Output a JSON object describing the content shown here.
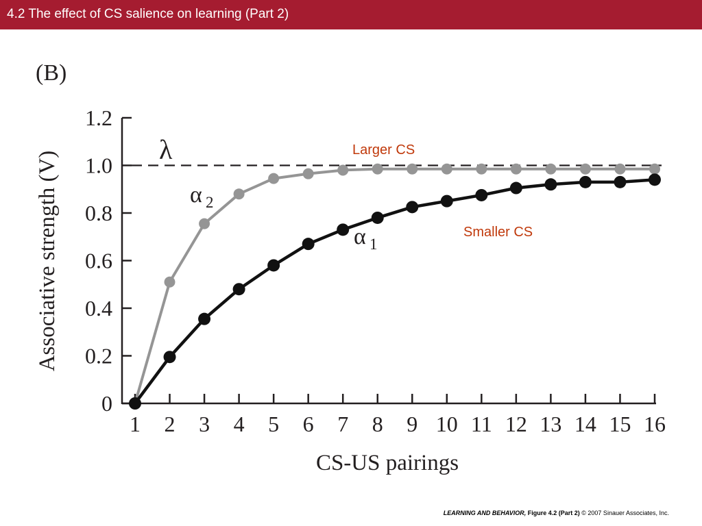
{
  "header": {
    "title": "4.2  The effect of CS salience on learning (Part 2)"
  },
  "panel_label": "(B)",
  "footer": {
    "book": "LEARNING AND BEHAVIOR,",
    "figure": " Figure 4.2 (Part 2)",
    "copyright": "  © 2007 Sinauer Associates, Inc."
  },
  "colors": {
    "title_bar": "#a51c30",
    "larger_cs": "#959595",
    "smaller_cs": "#111111",
    "annotation": "#c0390b"
  },
  "chart_data": {
    "type": "line",
    "xlabel": "CS-US pairings",
    "ylabel": "Associative strength (V)",
    "x": [
      1,
      2,
      3,
      4,
      5,
      6,
      7,
      8,
      9,
      10,
      11,
      12,
      13,
      14,
      15,
      16
    ],
    "xlim": [
      1,
      16
    ],
    "ylim": [
      0,
      1.2
    ],
    "yticks": [
      "0",
      "0.2",
      "0.4",
      "0.6",
      "0.8",
      "1.0",
      "1.2"
    ],
    "grid": false,
    "asymptote": {
      "value": 1.0,
      "label": "λ"
    },
    "series": [
      {
        "name": "Larger CS",
        "label": "α",
        "subscript": "2",
        "values": [
          0,
          0.51,
          0.755,
          0.88,
          0.945,
          0.965,
          0.98,
          0.985,
          0.985,
          0.985,
          0.985,
          0.985,
          0.985,
          0.985,
          0.985,
          0.985
        ]
      },
      {
        "name": "Smaller CS",
        "label": "α",
        "subscript": "1",
        "values": [
          0,
          0.195,
          0.355,
          0.48,
          0.58,
          0.67,
          0.73,
          0.78,
          0.825,
          0.85,
          0.875,
          0.905,
          0.92,
          0.93,
          0.93,
          0.94
        ]
      }
    ]
  }
}
